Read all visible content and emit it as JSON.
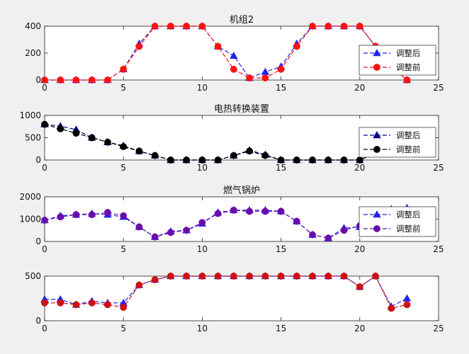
{
  "chart_data": [
    {
      "type": "line",
      "title": "机组2",
      "xlim": [
        0,
        25
      ],
      "ylim": [
        0,
        400
      ],
      "xticks": [
        0,
        5,
        10,
        15,
        20,
        25
      ],
      "yticks": [
        0,
        200,
        400
      ],
      "grid": false,
      "legend_position": "right",
      "x": [
        0,
        1,
        2,
        3,
        4,
        5,
        6,
        7,
        8,
        9,
        10,
        11,
        12,
        13,
        14,
        15,
        16,
        17,
        18,
        19,
        20,
        21,
        22,
        23
      ],
      "series": [
        {
          "name": "调整后",
          "color": "#2222ee",
          "marker": "triangle",
          "values": [
            0,
            0,
            0,
            0,
            0,
            80,
            270,
            400,
            400,
            400,
            400,
            250,
            180,
            15,
            60,
            100,
            270,
            400,
            400,
            400,
            400,
            250,
            100,
            0
          ]
        },
        {
          "name": "调整前",
          "color": "#ff1111",
          "marker": "circle",
          "values": [
            0,
            0,
            0,
            0,
            0,
            80,
            250,
            400,
            400,
            400,
            400,
            250,
            80,
            15,
            15,
            80,
            250,
            400,
            400,
            400,
            400,
            250,
            100,
            0
          ]
        }
      ]
    },
    {
      "type": "line",
      "title": "电热转换装置",
      "xlim": [
        0,
        25
      ],
      "ylim": [
        0,
        1000
      ],
      "xticks": [
        0,
        5,
        10,
        15,
        20,
        25
      ],
      "yticks": [
        0,
        500,
        1000
      ],
      "grid": false,
      "legend_position": "right",
      "x": [
        0,
        1,
        2,
        3,
        4,
        5,
        6,
        7,
        8,
        9,
        10,
        11,
        12,
        13,
        14,
        15,
        16,
        17,
        18,
        19,
        20,
        21,
        22,
        23
      ],
      "series": [
        {
          "name": "调整后",
          "color": "#000080",
          "marker": "triangle",
          "values": [
            800,
            760,
            680,
            500,
            400,
            320,
            200,
            100,
            0,
            0,
            0,
            0,
            100,
            220,
            120,
            0,
            0,
            0,
            0,
            0,
            0,
            150,
            300,
            550
          ]
        },
        {
          "name": "调整前",
          "color": "#000000",
          "marker": "circle",
          "values": [
            800,
            700,
            600,
            500,
            400,
            300,
            200,
            100,
            0,
            0,
            0,
            0,
            100,
            200,
            100,
            0,
            0,
            0,
            0,
            0,
            0,
            150,
            300,
            500
          ]
        }
      ]
    },
    {
      "type": "line",
      "title": "燃气锅炉",
      "xlim": [
        0,
        25
      ],
      "ylim": [
        0,
        2000
      ],
      "xticks": [
        0,
        5,
        10,
        15,
        20,
        25
      ],
      "yticks": [
        0,
        1000,
        2000
      ],
      "grid": false,
      "legend_position": "right",
      "x": [
        0,
        1,
        2,
        3,
        4,
        5,
        6,
        7,
        8,
        9,
        10,
        11,
        12,
        13,
        14,
        15,
        16,
        17,
        18,
        19,
        20,
        21,
        22,
        23
      ],
      "series": [
        {
          "name": "调整后",
          "color": "#2222ee",
          "marker": "triangle",
          "values": [
            950,
            1150,
            1200,
            1250,
            1200,
            1100,
            650,
            200,
            450,
            500,
            800,
            1300,
            1400,
            1400,
            1400,
            1350,
            900,
            300,
            150,
            600,
            650,
            1200,
            1450,
            1500
          ]
        },
        {
          "name": "调整前",
          "color": "#6a0dad",
          "marker": "circle",
          "values": [
            950,
            1100,
            1200,
            1200,
            1300,
            1150,
            650,
            200,
            400,
            500,
            850,
            1250,
            1400,
            1350,
            1350,
            1350,
            900,
            300,
            150,
            500,
            700,
            1150,
            1400,
            1400
          ]
        }
      ]
    },
    {
      "type": "line",
      "title": "",
      "xlim": [
        0,
        25
      ],
      "ylim": [
        0,
        500
      ],
      "xticks": [
        0,
        5,
        10,
        15,
        20,
        25
      ],
      "yticks": [
        0,
        500
      ],
      "grid": false,
      "x": [
        0,
        1,
        2,
        3,
        4,
        5,
        6,
        7,
        8,
        9,
        10,
        11,
        12,
        13,
        14,
        15,
        16,
        17,
        18,
        19,
        20,
        21,
        22,
        23
      ],
      "series": [
        {
          "name": "",
          "color": "#2222ee",
          "marker": "triangle",
          "values": [
            240,
            240,
            180,
            220,
            200,
            200,
            400,
            460,
            500,
            500,
            500,
            500,
            500,
            500,
            500,
            500,
            500,
            500,
            500,
            500,
            380,
            500,
            160,
            250
          ]
        },
        {
          "name": "",
          "color": "#cc1111",
          "marker": "circle",
          "values": [
            200,
            200,
            180,
            200,
            180,
            150,
            400,
            460,
            500,
            500,
            500,
            500,
            500,
            500,
            500,
            500,
            500,
            500,
            500,
            500,
            380,
            500,
            140,
            180
          ]
        }
      ]
    }
  ]
}
